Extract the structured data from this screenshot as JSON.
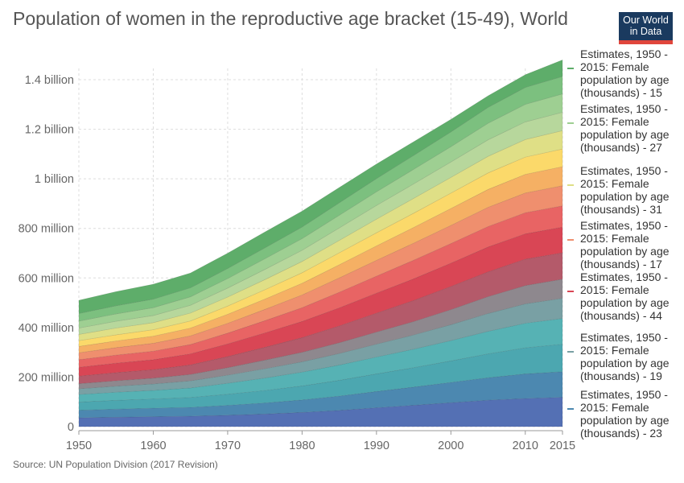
{
  "header": {
    "title": "Population of women in the reproductive age bracket (15-49), World",
    "logo_line1": "Our World",
    "logo_line2": "in Data"
  },
  "footer": {
    "source": "Source: UN Population Division (2017 Revision)"
  },
  "chart_data": {
    "type": "area",
    "stacked": true,
    "grid": true,
    "x": [
      1950,
      1955,
      1960,
      1965,
      1970,
      1975,
      1980,
      1985,
      1990,
      1995,
      2000,
      2005,
      2010,
      2015
    ],
    "x_ticks": [
      1950,
      1960,
      1970,
      1980,
      1990,
      2000,
      2010,
      2015
    ],
    "ylim": [
      0,
      1400000000
    ],
    "y_ticks": [
      {
        "value": 0,
        "label": "0"
      },
      {
        "value": 200000000,
        "label": "200 million"
      },
      {
        "value": 400000000,
        "label": "400 million"
      },
      {
        "value": 600000000,
        "label": "600 million"
      },
      {
        "value": 800000000,
        "label": "800 million"
      },
      {
        "value": 1000000000,
        "label": "1 billion"
      },
      {
        "value": 1200000000,
        "label": "1.2 billion"
      },
      {
        "value": 1400000000,
        "label": "1.4 billion"
      }
    ],
    "total": [
      510000000,
      545000000,
      575000000,
      620000000,
      700000000,
      785000000,
      870000000,
      965000000,
      1060000000,
      1150000000,
      1240000000,
      1335000000,
      1420000000,
      1480000000
    ],
    "band_colors": [
      "#5470b4",
      "#4c88b0",
      "#4ca7b0",
      "#56b2b4",
      "#79a0a4",
      "#8e888e",
      "#b45a6a",
      "#d94655",
      "#e86464",
      "#ef8f6e",
      "#f5b064",
      "#fbd96a",
      "#dfdf86",
      "#b7d79c",
      "#9ecf92",
      "#7cc07f",
      "#5ead6a"
    ],
    "series_shares": [
      [
        0.07,
        0.07,
        0.07,
        0.068,
        0.066,
        0.065,
        0.066,
        0.068,
        0.072,
        0.075,
        0.078,
        0.08,
        0.08,
        0.08
      ],
      [
        0.06,
        0.06,
        0.06,
        0.058,
        0.057,
        0.057,
        0.058,
        0.06,
        0.062,
        0.064,
        0.066,
        0.068,
        0.07,
        0.07
      ],
      [
        0.065,
        0.065,
        0.065,
        0.064,
        0.064,
        0.064,
        0.065,
        0.066,
        0.067,
        0.068,
        0.07,
        0.072,
        0.074,
        0.075
      ],
      [
        0.06,
        0.06,
        0.06,
        0.062,
        0.063,
        0.064,
        0.064,
        0.064,
        0.064,
        0.065,
        0.066,
        0.068,
        0.07,
        0.07
      ],
      [
        0.045,
        0.045,
        0.045,
        0.046,
        0.047,
        0.048,
        0.048,
        0.048,
        0.049,
        0.05,
        0.052,
        0.054,
        0.055,
        0.055
      ],
      [
        0.04,
        0.04,
        0.04,
        0.042,
        0.043,
        0.044,
        0.044,
        0.045,
        0.046,
        0.047,
        0.049,
        0.051,
        0.052,
        0.052
      ],
      [
        0.06,
        0.06,
        0.06,
        0.062,
        0.064,
        0.066,
        0.068,
        0.07,
        0.072,
        0.074,
        0.075,
        0.075,
        0.075,
        0.072
      ],
      [
        0.07,
        0.07,
        0.07,
        0.072,
        0.073,
        0.074,
        0.075,
        0.076,
        0.076,
        0.076,
        0.076,
        0.075,
        0.072,
        0.07
      ],
      [
        0.06,
        0.06,
        0.06,
        0.061,
        0.062,
        0.063,
        0.064,
        0.065,
        0.065,
        0.065,
        0.064,
        0.062,
        0.06,
        0.058
      ],
      [
        0.055,
        0.055,
        0.055,
        0.056,
        0.057,
        0.058,
        0.059,
        0.06,
        0.06,
        0.06,
        0.059,
        0.058,
        0.056,
        0.055
      ],
      [
        0.05,
        0.05,
        0.05,
        0.051,
        0.052,
        0.053,
        0.054,
        0.055,
        0.055,
        0.055,
        0.055,
        0.054,
        0.053,
        0.052
      ],
      [
        0.045,
        0.045,
        0.045,
        0.046,
        0.047,
        0.048,
        0.049,
        0.05,
        0.05,
        0.05,
        0.05,
        0.05,
        0.049,
        0.048
      ],
      [
        0.05,
        0.05,
        0.05,
        0.051,
        0.052,
        0.052,
        0.052,
        0.052,
        0.052,
        0.052,
        0.051,
        0.05,
        0.05,
        0.05
      ],
      [
        0.05,
        0.05,
        0.05,
        0.051,
        0.052,
        0.052,
        0.052,
        0.052,
        0.052,
        0.051,
        0.05,
        0.05,
        0.05,
        0.05
      ],
      [
        0.055,
        0.055,
        0.055,
        0.055,
        0.055,
        0.055,
        0.054,
        0.053,
        0.052,
        0.051,
        0.05,
        0.05,
        0.05,
        0.05
      ],
      [
        0.06,
        0.06,
        0.06,
        0.059,
        0.058,
        0.056,
        0.054,
        0.052,
        0.05,
        0.049,
        0.048,
        0.048,
        0.048,
        0.048
      ],
      [
        0.105,
        0.105,
        0.105,
        0.096,
        0.088,
        0.082,
        0.074,
        0.064,
        0.056,
        0.048,
        0.041,
        0.035,
        0.036,
        0.045
      ]
    ],
    "legend": [
      {
        "label": "Estimates, 1950 - 2015: Female population by age (thousands) - 15",
        "color": "#5ead6a"
      },
      {
        "label": "Estimates, 1950 - 2015: Female population by age (thousands) - 27",
        "color": "#9ecf92"
      },
      {
        "label": "Estimates, 1950 - 2015: Female population by age (thousands) - 31",
        "color": "#dfdf86"
      },
      {
        "label": "Estimates, 1950 - 2015: Female population by age (thousands) - 17",
        "color": "#ef8f6e"
      },
      {
        "label": "Estimates, 1950 - 2015: Female population by age (thousands) - 44",
        "color": "#d94655"
      },
      {
        "label": "Estimates, 1950 - 2015: Female population by age (thousands) - 19",
        "color": "#79a0a4"
      },
      {
        "label": "Estimates, 1950 - 2015: Female population by age (thousands) - 23",
        "color": "#4c88b0"
      }
    ]
  }
}
